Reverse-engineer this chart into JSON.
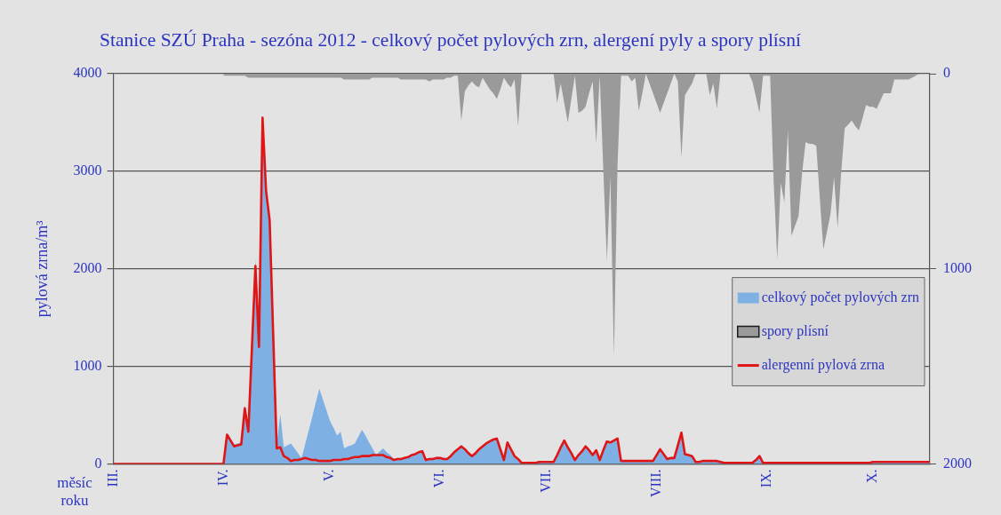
{
  "chart_data": {
    "type": "area",
    "title": "Stanice SZÚ Praha - sezóna 2012 - celkový počet pylových zrn, alergení pyly a spory plísní",
    "xlabel": "měsíc roku",
    "ylabel": "pylová zrna/m³",
    "categories": [
      "III.",
      null,
      null,
      null,
      null,
      null,
      null,
      null,
      null,
      null,
      null,
      null,
      null,
      null,
      null,
      null,
      null,
      null,
      null,
      null,
      null,
      null,
      null,
      null,
      null,
      null,
      null,
      null,
      null,
      null,
      null,
      "IV.",
      null,
      null,
      null,
      null,
      null,
      null,
      null,
      null,
      null,
      null,
      null,
      null,
      null,
      null,
      null,
      null,
      null,
      null,
      null,
      null,
      null,
      null,
      null,
      null,
      null,
      null,
      null,
      null,
      null,
      "V.",
      null,
      null,
      null,
      null,
      null,
      null,
      null,
      null,
      null,
      null,
      null,
      null,
      null,
      null,
      null,
      null,
      null,
      null,
      null,
      null,
      null,
      null,
      null,
      null,
      null,
      null,
      null,
      null,
      null,
      null,
      "VI.",
      null,
      null,
      null,
      null,
      null,
      null,
      null,
      null,
      null,
      null,
      null,
      null,
      null,
      null,
      null,
      null,
      null,
      null,
      null,
      null,
      null,
      null,
      null,
      null,
      null,
      null,
      null,
      null,
      null,
      "VII.",
      null,
      null,
      null,
      null,
      null,
      null,
      null,
      null,
      null,
      null,
      null,
      null,
      null,
      null,
      null,
      null,
      null,
      null,
      null,
      null,
      null,
      null,
      null,
      null,
      null,
      null,
      null,
      null,
      null,
      null,
      "VIII.",
      null,
      null,
      null,
      null,
      null,
      null,
      null,
      null,
      null,
      null,
      null,
      null,
      null,
      null,
      null,
      null,
      null,
      null,
      null,
      null,
      null,
      null,
      null,
      null,
      null,
      null,
      null,
      null,
      null,
      null,
      "IX.",
      null,
      null,
      null,
      null,
      null,
      null,
      null,
      null,
      null,
      null,
      null,
      null,
      null,
      null,
      null,
      null,
      null,
      null,
      null,
      null,
      null,
      null,
      null,
      null,
      null,
      null,
      null,
      null,
      null,
      "X.",
      null,
      null,
      null,
      null,
      null,
      null,
      null,
      null,
      null,
      null,
      null,
      null,
      null,
      null,
      null,
      null
    ],
    "ylim": [
      0,
      4000
    ],
    "yticks": [
      0,
      1000,
      2000,
      3000,
      4000
    ],
    "y2lim": [
      2000,
      0
    ],
    "y2ticks": [
      0,
      1000,
      2000
    ],
    "grid": "y",
    "legend": "bottom right",
    "marker": "none",
    "series": [
      {
        "name": "celkový počet pylových zrn",
        "color": "#7fb0e3",
        "values": [
          0,
          0,
          0,
          0,
          0,
          0,
          0,
          0,
          0,
          0,
          0,
          0,
          0,
          0,
          0,
          0,
          0,
          0,
          0,
          0,
          0,
          0,
          0,
          0,
          0,
          0,
          0,
          0,
          0,
          0,
          0,
          0,
          310,
          260,
          200,
          210,
          220,
          600,
          400,
          1250,
          2100,
          1300,
          3560,
          2820,
          2520,
          1360,
          200,
          510,
          170,
          190,
          210,
          160,
          110,
          60,
          200,
          340,
          480,
          630,
          770,
          660,
          550,
          440,
          370,
          290,
          330,
          160,
          180,
          190,
          210,
          280,
          350,
          290,
          220,
          160,
          90,
          130,
          160,
          120,
          90,
          50,
          60,
          60,
          70,
          80,
          100,
          110,
          130,
          140,
          50,
          60,
          60,
          70,
          70,
          60,
          60,
          90,
          130,
          160,
          190,
          160,
          120,
          90,
          120,
          160,
          190,
          220,
          240,
          260,
          270,
          160,
          50,
          230,
          160,
          90,
          60,
          20,
          20,
          20,
          20,
          20,
          30,
          30,
          30,
          30,
          30,
          100,
          180,
          250,
          180,
          120,
          50,
          100,
          140,
          190,
          150,
          100,
          150,
          50,
          150,
          240,
          230,
          250,
          270,
          40,
          40,
          40,
          40,
          40,
          40,
          40,
          40,
          40,
          40,
          100,
          160,
          110,
          60,
          70,
          70,
          200,
          330,
          110,
          100,
          90,
          30,
          30,
          40,
          40,
          40,
          40,
          40,
          30,
          20,
          20,
          20,
          20,
          20,
          20,
          20,
          20,
          20,
          50,
          90,
          20,
          20,
          20,
          20,
          20,
          20,
          20,
          20,
          20,
          20,
          20,
          20,
          20,
          20,
          20,
          20,
          20,
          20,
          20,
          20,
          20,
          20,
          20,
          20,
          20,
          20,
          20,
          20,
          20,
          20,
          20,
          30,
          30,
          30,
          30,
          30,
          30,
          30,
          30,
          30,
          30,
          30,
          30,
          30,
          30,
          30,
          30,
          30
        ]
      },
      {
        "name": "spory plísní",
        "axis": "y2",
        "color": "#9a9a9a",
        "values": [
          null,
          null,
          null,
          null,
          null,
          null,
          null,
          null,
          null,
          null,
          null,
          null,
          null,
          null,
          null,
          null,
          null,
          null,
          null,
          null,
          null,
          null,
          null,
          null,
          null,
          null,
          null,
          null,
          null,
          null,
          null,
          10,
          10,
          10,
          10,
          10,
          10,
          10,
          20,
          20,
          20,
          20,
          20,
          20,
          20,
          20,
          20,
          20,
          20,
          20,
          20,
          20,
          20,
          20,
          20,
          20,
          20,
          20,
          20,
          20,
          20,
          20,
          20,
          20,
          20,
          30,
          30,
          30,
          30,
          30,
          30,
          30,
          30,
          20,
          20,
          20,
          20,
          20,
          20,
          20,
          20,
          30,
          30,
          30,
          30,
          30,
          30,
          30,
          30,
          40,
          30,
          30,
          30,
          30,
          20,
          20,
          10,
          10,
          240,
          90,
          60,
          40,
          60,
          70,
          20,
          50,
          80,
          100,
          130,
          80,
          20,
          50,
          70,
          30,
          270,
          0,
          0,
          0,
          0,
          0,
          0,
          0,
          0,
          0,
          0,
          150,
          50,
          150,
          250,
          130,
          10,
          200,
          190,
          170,
          100,
          40,
          360,
          10,
          490,
          960,
          530,
          1450,
          470,
          10,
          10,
          10,
          40,
          20,
          190,
          100,
          0,
          50,
          100,
          150,
          200,
          150,
          100,
          50,
          0,
          40,
          430,
          110,
          80,
          50,
          0,
          0,
          0,
          0,
          110,
          50,
          180,
          0,
          0,
          0,
          0,
          0,
          0,
          0,
          0,
          0,
          40,
          120,
          200,
          10,
          10,
          10,
          560,
          950,
          560,
          660,
          290,
          830,
          780,
          730,
          510,
          350,
          360,
          360,
          370,
          640,
          900,
          810,
          720,
          530,
          790,
          510,
          280,
          260,
          240,
          270,
          290,
          230,
          160,
          170,
          170,
          180,
          140,
          100,
          100,
          100,
          30,
          30,
          30,
          30,
          30,
          20,
          10,
          0,
          null,
          null,
          null
        ]
      },
      {
        "name": "alergenní pylová zrna",
        "type": "line",
        "color": "#e01515",
        "values": [
          0,
          0,
          0,
          0,
          0,
          0,
          0,
          0,
          0,
          0,
          0,
          0,
          0,
          0,
          0,
          0,
          0,
          0,
          0,
          0,
          0,
          0,
          0,
          0,
          0,
          0,
          0,
          0,
          0,
          0,
          0,
          0,
          300,
          240,
          180,
          190,
          200,
          570,
          330,
          1180,
          2030,
          1200,
          3550,
          2800,
          2500,
          1330,
          160,
          170,
          80,
          60,
          30,
          40,
          40,
          50,
          60,
          50,
          40,
          40,
          30,
          30,
          30,
          30,
          40,
          40,
          40,
          50,
          50,
          60,
          70,
          70,
          80,
          80,
          80,
          90,
          90,
          90,
          90,
          70,
          60,
          40,
          50,
          50,
          60,
          70,
          90,
          100,
          120,
          130,
          40,
          50,
          50,
          60,
          60,
          50,
          50,
          80,
          120,
          150,
          180,
          150,
          110,
          80,
          110,
          150,
          180,
          210,
          230,
          250,
          260,
          150,
          40,
          220,
          150,
          80,
          50,
          10,
          10,
          10,
          10,
          10,
          20,
          20,
          20,
          20,
          20,
          90,
          170,
          240,
          170,
          110,
          40,
          90,
          130,
          180,
          140,
          90,
          140,
          40,
          140,
          230,
          220,
          240,
          260,
          30,
          30,
          30,
          30,
          30,
          30,
          30,
          30,
          30,
          30,
          90,
          150,
          100,
          50,
          60,
          60,
          190,
          320,
          100,
          90,
          80,
          20,
          20,
          30,
          30,
          30,
          30,
          30,
          20,
          10,
          10,
          10,
          10,
          10,
          10,
          10,
          10,
          10,
          40,
          80,
          10,
          10,
          10,
          10,
          10,
          10,
          10,
          10,
          10,
          10,
          10,
          10,
          10,
          10,
          10,
          10,
          10,
          10,
          10,
          10,
          10,
          10,
          10,
          10,
          10,
          10,
          10,
          10,
          10,
          10,
          10,
          20,
          20,
          20,
          20,
          20,
          20,
          20,
          20,
          20,
          20,
          20,
          20,
          20,
          20,
          20,
          20,
          20
        ]
      }
    ]
  }
}
